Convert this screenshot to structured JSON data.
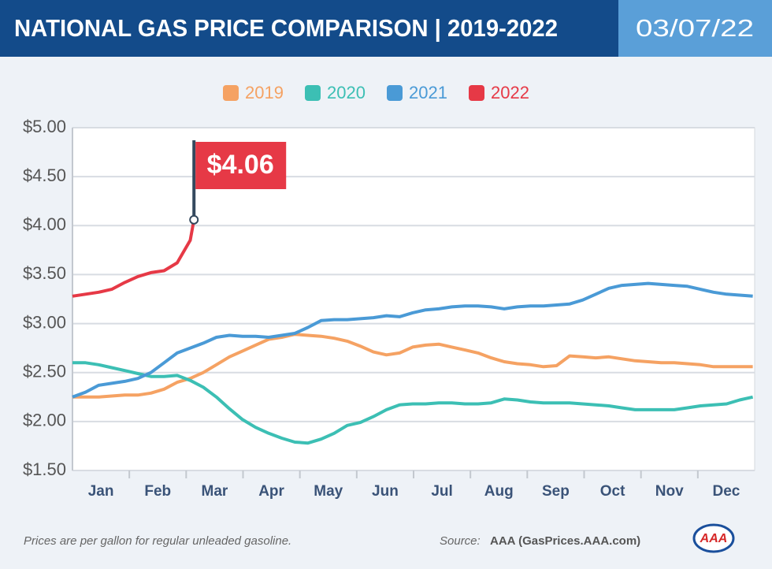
{
  "chart_data": {
    "type": "line",
    "title": "NATIONAL GAS PRICE COMPARISON | 2019-2022",
    "date": "03/07/22",
    "xaxis_labels": [
      "Jan",
      "Feb",
      "Mar",
      "Apr",
      "May",
      "Jun",
      "Jul",
      "Aug",
      "Sep",
      "Oct",
      "Nov",
      "Dec"
    ],
    "x": [
      1,
      8,
      15,
      22,
      29,
      36,
      43,
      50,
      57,
      64,
      71,
      78,
      85,
      92,
      99,
      106,
      113,
      120,
      127,
      134,
      141,
      148,
      155,
      162,
      169,
      176,
      183,
      190,
      197,
      204,
      211,
      218,
      225,
      232,
      239,
      246,
      253,
      260,
      267,
      274,
      281,
      288,
      295,
      302,
      309,
      316,
      323,
      330,
      337,
      344,
      351,
      358,
      365
    ],
    "xlim": [
      1,
      366
    ],
    "ylim": [
      1.5,
      5
    ],
    "yticks": [
      {
        "value": 1.5,
        "label": "$1.50"
      },
      {
        "value": 2,
        "label": "$2.00"
      },
      {
        "value": 2.5,
        "label": "$2.50"
      },
      {
        "value": 3,
        "label": "$3.00"
      },
      {
        "value": 3.5,
        "label": "$3.50"
      },
      {
        "value": 4,
        "label": "$4.00"
      },
      {
        "value": 4.5,
        "label": "$4.50"
      },
      {
        "value": 5,
        "label": "$5.00"
      }
    ],
    "grid": true,
    "series": [
      {
        "name": "2019",
        "color": "#f5a263",
        "values": [
          2.25,
          2.25,
          2.25,
          2.26,
          2.27,
          2.27,
          2.29,
          2.33,
          2.4,
          2.44,
          2.5,
          2.58,
          2.66,
          2.72,
          2.78,
          2.84,
          2.86,
          2.89,
          2.88,
          2.87,
          2.85,
          2.82,
          2.77,
          2.71,
          2.68,
          2.7,
          2.76,
          2.78,
          2.79,
          2.76,
          2.73,
          2.7,
          2.65,
          2.61,
          2.59,
          2.58,
          2.56,
          2.57,
          2.67,
          2.66,
          2.65,
          2.66,
          2.64,
          2.62,
          2.61,
          2.6,
          2.6,
          2.59,
          2.58,
          2.56,
          2.56,
          2.56,
          2.56
        ]
      },
      {
        "name": "2020",
        "color": "#3cbfb4",
        "values": [
          2.6,
          2.6,
          2.58,
          2.55,
          2.52,
          2.49,
          2.46,
          2.46,
          2.47,
          2.42,
          2.35,
          2.25,
          2.13,
          2.02,
          1.94,
          1.88,
          1.83,
          1.79,
          1.78,
          1.82,
          1.88,
          1.96,
          1.99,
          2.05,
          2.12,
          2.17,
          2.18,
          2.18,
          2.19,
          2.19,
          2.18,
          2.18,
          2.19,
          2.23,
          2.22,
          2.2,
          2.19,
          2.19,
          2.19,
          2.18,
          2.17,
          2.16,
          2.14,
          2.12,
          2.12,
          2.12,
          2.12,
          2.14,
          2.16,
          2.17,
          2.18,
          2.22,
          2.25
        ]
      },
      {
        "name": "2021",
        "color": "#4a9ad6",
        "values": [
          2.25,
          2.3,
          2.37,
          2.39,
          2.41,
          2.44,
          2.5,
          2.6,
          2.7,
          2.75,
          2.8,
          2.86,
          2.88,
          2.87,
          2.87,
          2.86,
          2.88,
          2.9,
          2.96,
          3.03,
          3.04,
          3.04,
          3.05,
          3.06,
          3.08,
          3.07,
          3.11,
          3.14,
          3.15,
          3.17,
          3.18,
          3.18,
          3.17,
          3.15,
          3.17,
          3.18,
          3.18,
          3.19,
          3.2,
          3.24,
          3.3,
          3.36,
          3.39,
          3.4,
          3.41,
          3.4,
          3.39,
          3.38,
          3.35,
          3.32,
          3.3,
          3.29,
          3.28
        ]
      },
      {
        "name": "2022",
        "color": "#e63946",
        "x": [
          1,
          8,
          15,
          22,
          29,
          36,
          43,
          50,
          57,
          64,
          66
        ],
        "values": [
          3.28,
          3.3,
          3.32,
          3.35,
          3.42,
          3.48,
          3.52,
          3.54,
          3.62,
          3.85,
          4.06
        ],
        "value_labels": [
          null,
          null,
          null,
          null,
          null,
          null,
          null,
          null,
          null,
          null,
          "$4.06"
        ]
      }
    ],
    "note": "Prices are per gallon for regular unleaded gasoline.",
    "source_label": "Source:",
    "source": "AAA (GasPrices.AAA.com)",
    "logo": "AAA"
  }
}
